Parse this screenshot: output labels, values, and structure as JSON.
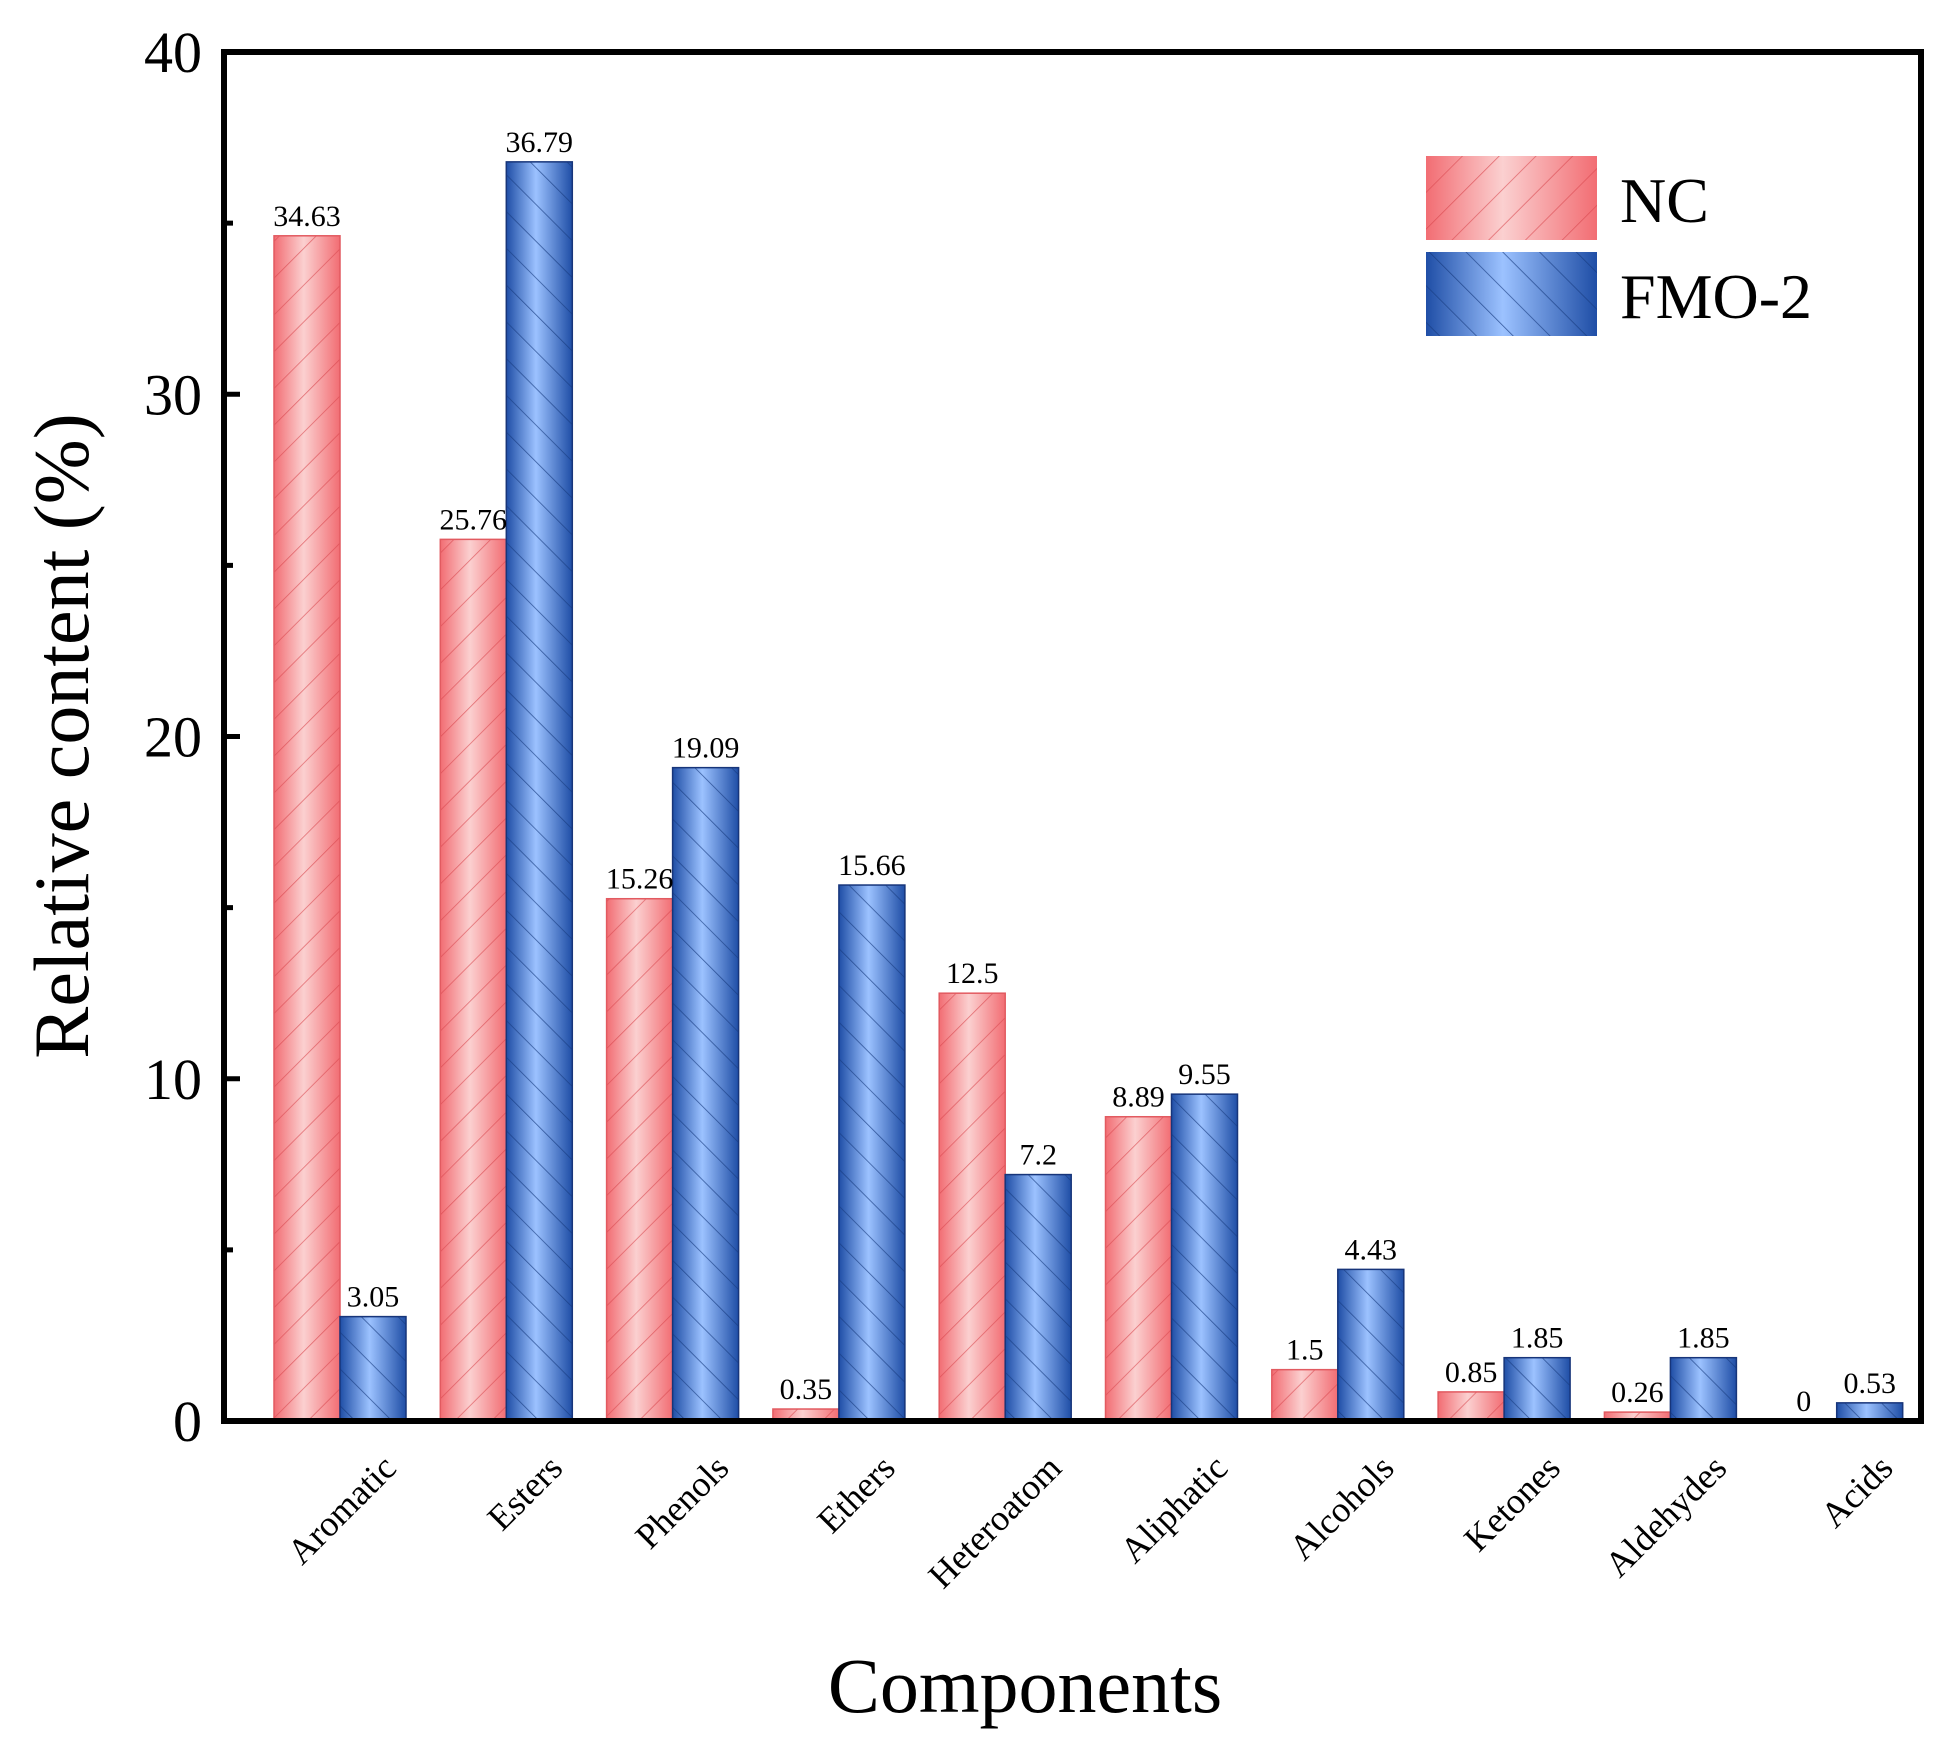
{
  "chart_data": {
    "type": "bar",
    "title": "",
    "xlabel": "Components",
    "ylabel": "Relative content (%)",
    "ylim": [
      0,
      40
    ],
    "yticks": [
      "0",
      "10",
      "20",
      "30",
      "40"
    ],
    "categories": [
      "Aromatic",
      "Esters",
      "Phenols",
      "Ethers",
      "Heteroatom",
      "Aliphatic",
      "Alcohols",
      "Ketones",
      "Aldehydes",
      "Acids"
    ],
    "series": [
      {
        "name": "NC",
        "values": [
          34.63,
          25.76,
          15.26,
          0.35,
          12.5,
          8.89,
          1.5,
          0.85,
          0.26,
          0
        ],
        "labels": [
          "34.63",
          "25.76",
          "15.26",
          "0.35",
          "12.5",
          "8.89",
          "1.5",
          "0.85",
          "0.26",
          "0"
        ]
      },
      {
        "name": "FMO-2",
        "values": [
          3.05,
          36.79,
          19.09,
          15.66,
          7.2,
          9.55,
          4.43,
          1.85,
          1.85,
          0.53
        ],
        "labels": [
          "3.05",
          "36.79",
          "19.09",
          "15.66",
          "7.2",
          "9.55",
          "4.43",
          "1.85",
          "1.85",
          "0.53"
        ]
      }
    ],
    "legend_position": "top-right",
    "grid": false,
    "colors": {
      "nc_fill_light": "#fbd0d0",
      "nc_fill_dark": "#f26d73",
      "nc_hatch": "#e25a60",
      "fmo_fill_light": "#9cc2ff",
      "fmo_fill_dark": "#1f4ea6",
      "fmo_hatch": "#1d3f86"
    }
  }
}
